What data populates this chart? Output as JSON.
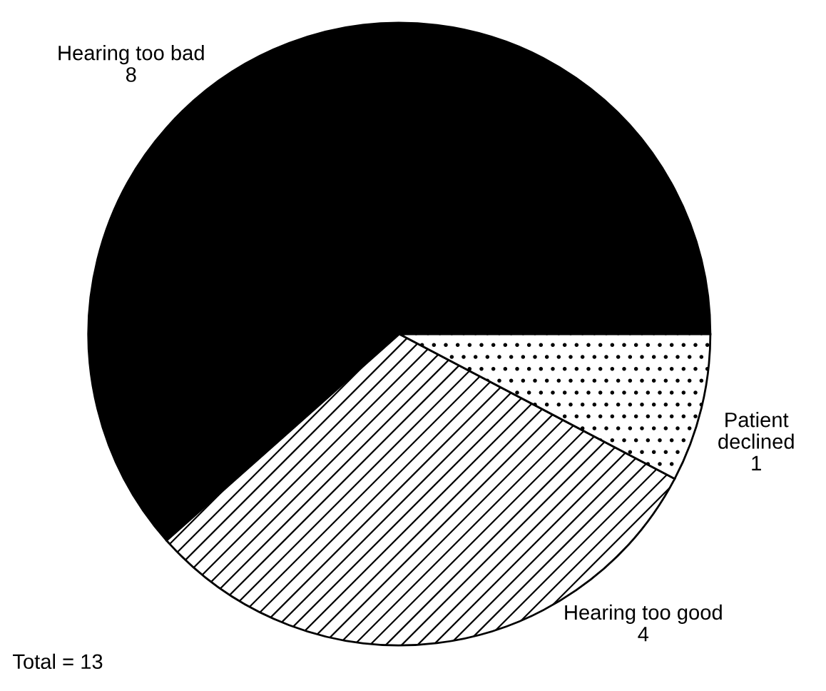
{
  "chart_data": {
    "type": "pie",
    "categories": [
      "Hearing too bad",
      "Hearing too good",
      "Patient declined"
    ],
    "values": [
      8,
      4,
      1
    ],
    "colors": [
      "#000000",
      "#ffffff",
      "#ffffff"
    ],
    "data_labels": true,
    "legend": false,
    "annotations": [
      "Total = 13"
    ]
  }
}
